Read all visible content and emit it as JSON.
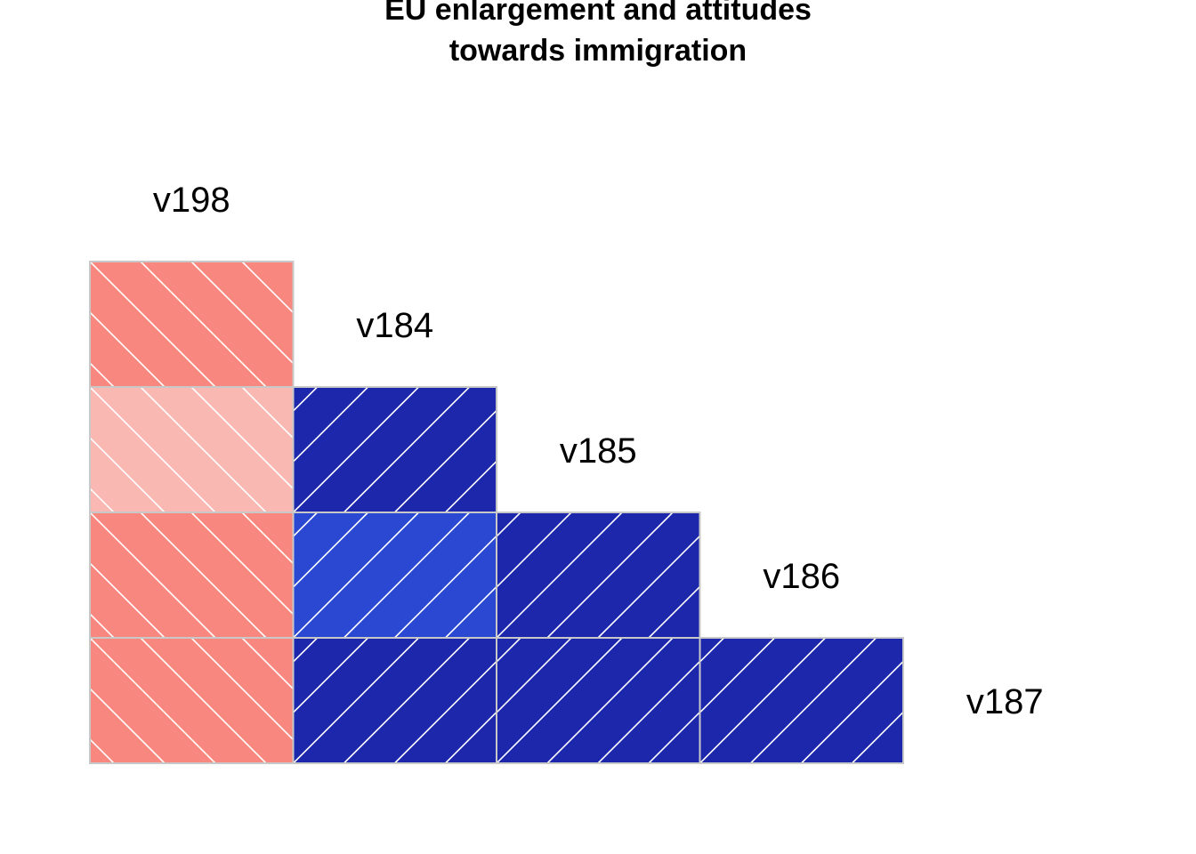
{
  "chart_data": {
    "type": "heatmap",
    "title": [
      "EU enlargement and attitudes",
      "towards immigration"
    ],
    "variables": [
      "v198",
      "v184",
      "v185",
      "v186",
      "v187"
    ],
    "cells": [
      {
        "row": "v184",
        "col": "v198",
        "sign": "negative",
        "fill": "#F8877F"
      },
      {
        "row": "v185",
        "col": "v198",
        "sign": "negative",
        "fill": "#FAB8B3"
      },
      {
        "row": "v186",
        "col": "v198",
        "sign": "negative",
        "fill": "#F8877F"
      },
      {
        "row": "v187",
        "col": "v198",
        "sign": "negative",
        "fill": "#F8877F"
      },
      {
        "row": "v185",
        "col": "v184",
        "sign": "positive",
        "fill": "#1C27AC"
      },
      {
        "row": "v186",
        "col": "v184",
        "sign": "positive",
        "fill": "#2B48D2"
      },
      {
        "row": "v187",
        "col": "v184",
        "sign": "positive",
        "fill": "#1C27AC"
      },
      {
        "row": "v186",
        "col": "v185",
        "sign": "positive",
        "fill": "#1C27AC"
      },
      {
        "row": "v187",
        "col": "v185",
        "sign": "positive",
        "fill": "#1C27AC"
      },
      {
        "row": "v187",
        "col": "v186",
        "sign": "positive",
        "fill": "#1C27AC"
      }
    ],
    "colors": {
      "negative": "#F8877F",
      "negative_weak": "#FAB8B3",
      "positive": "#1C27AC",
      "positive_weak": "#2B48D2",
      "cell_border": "#C8C8C8",
      "hatch": "#FFFFFF"
    }
  }
}
